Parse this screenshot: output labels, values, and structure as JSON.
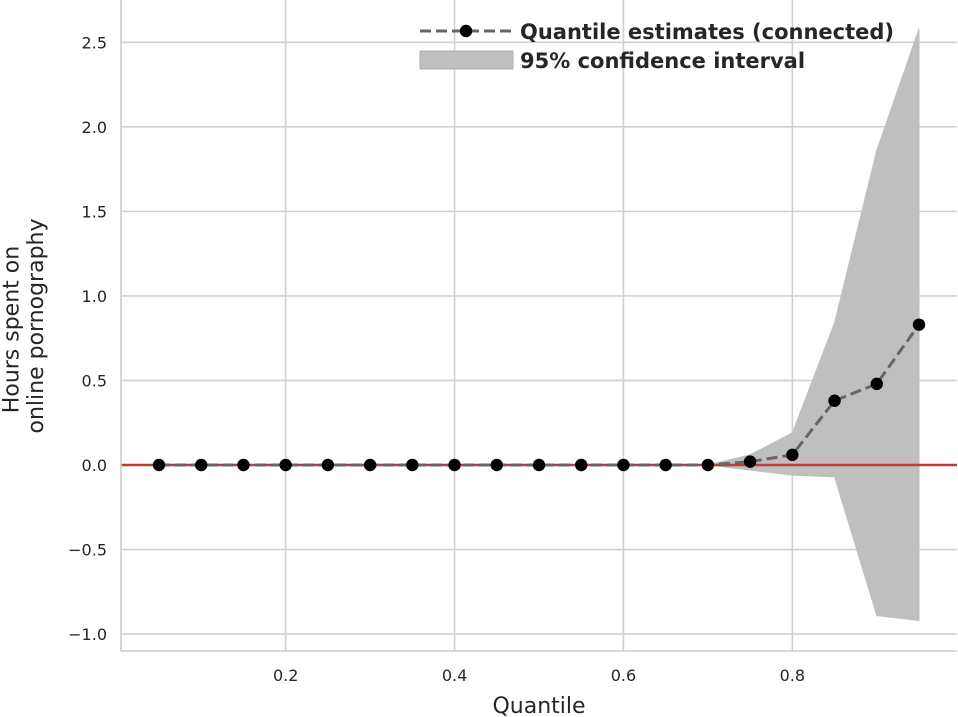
{
  "chart_data": {
    "type": "line",
    "title": "",
    "xlabel": "Quantile",
    "ylabel_lines": [
      "Hours spent on",
      "online pornography"
    ],
    "xlim": [
      0.005,
      0.995
    ],
    "ylim": [
      -1.1,
      2.75
    ],
    "xticks": [
      0.2,
      0.4,
      0.6,
      0.8
    ],
    "xtick_labels": [
      "0.2",
      "0.4",
      "0.6",
      "0.8"
    ],
    "yticks": [
      -1.0,
      -0.5,
      0.0,
      0.5,
      1.0,
      1.5,
      2.0,
      2.5
    ],
    "ytick_labels": [
      "−1.0",
      "−0.5",
      "0.0",
      "0.5",
      "1.0",
      "1.5",
      "2.0",
      "2.5"
    ],
    "grid": true,
    "legend_position": "top-right",
    "reference_line": {
      "y": 0.0,
      "color": "#c0393b"
    },
    "series": [
      {
        "name": "Quantile estimates (connected)",
        "style": "dashed-markers",
        "color": "#000000",
        "line_color": "#666666",
        "x": [
          0.05,
          0.1,
          0.15,
          0.2,
          0.25,
          0.3,
          0.35,
          0.4,
          0.45,
          0.5,
          0.55,
          0.6,
          0.65,
          0.7,
          0.75,
          0.8,
          0.85,
          0.9,
          0.95
        ],
        "y": [
          0,
          0,
          0,
          0,
          0,
          0,
          0,
          0,
          0,
          0,
          0,
          0,
          0,
          0,
          0.02,
          0.06,
          0.38,
          0.48,
          0.83
        ]
      },
      {
        "name": "95% confidence interval",
        "style": "band",
        "color": "#bfbfbf",
        "x": [
          0.05,
          0.1,
          0.15,
          0.2,
          0.25,
          0.3,
          0.35,
          0.4,
          0.45,
          0.5,
          0.55,
          0.6,
          0.65,
          0.7,
          0.75,
          0.8,
          0.85,
          0.9,
          0.95
        ],
        "lower": [
          0,
          0,
          0,
          0,
          0,
          0,
          0,
          0,
          0,
          0,
          0,
          0,
          0,
          0,
          -0.03,
          -0.06,
          -0.07,
          -0.89,
          -0.92
        ],
        "upper": [
          0,
          0,
          0,
          0,
          0,
          0,
          0,
          0,
          0,
          0,
          0,
          0,
          0,
          0,
          0.06,
          0.19,
          0.84,
          1.86,
          2.58
        ]
      }
    ]
  }
}
